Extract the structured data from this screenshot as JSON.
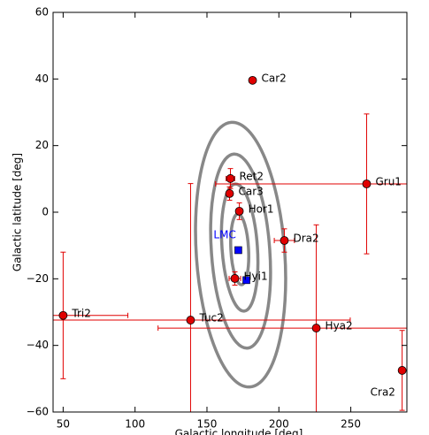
{
  "chart_data": {
    "type": "scatter",
    "xlabel": "Galactic longitude [deg]",
    "ylabel": "Galactic latitude [deg]",
    "xlim": [
      43,
      289
    ],
    "ylim": [
      -60,
      60
    ],
    "xticks": [
      50,
      100,
      150,
      200,
      250
    ],
    "yticks": [
      {
        "value": -60,
        "label": "−60"
      },
      {
        "value": -40,
        "label": "−40"
      },
      {
        "value": -20,
        "label": "−20"
      },
      0,
      20,
      40,
      60
    ],
    "series": [
      {
        "color": "#e00000",
        "marker": "circle",
        "labels": [
          "Car2",
          "Ret2",
          "Car3",
          "Hor1",
          "Dra2",
          "Gru1",
          "Hyi1",
          "Tri2",
          "Tuc2",
          "Hya2",
          "Cra2"
        ],
        "x": [
          181.7,
          166.3,
          165.7,
          172.5,
          203.8,
          261,
          169.4,
          50,
          138.6,
          226,
          285.7
        ],
        "values": [
          39.6,
          10.1,
          5.6,
          0.3,
          -8.5,
          8.5,
          -19.9,
          -31,
          -32.4,
          -34.8,
          -47.5
        ],
        "xerr": [
          0,
          3,
          2,
          2,
          7,
          105,
          4,
          45,
          111,
          110,
          2
        ],
        "yerr": [
          0,
          3,
          2,
          2.5,
          3.5,
          21,
          2,
          19,
          41,
          31,
          12
        ]
      },
      {
        "name": "LMC",
        "color": "#0000ff",
        "marker": "square",
        "x": [
          171.8,
          177.4
        ],
        "values": [
          -11.4,
          -20.4
        ]
      }
    ]
  }
}
